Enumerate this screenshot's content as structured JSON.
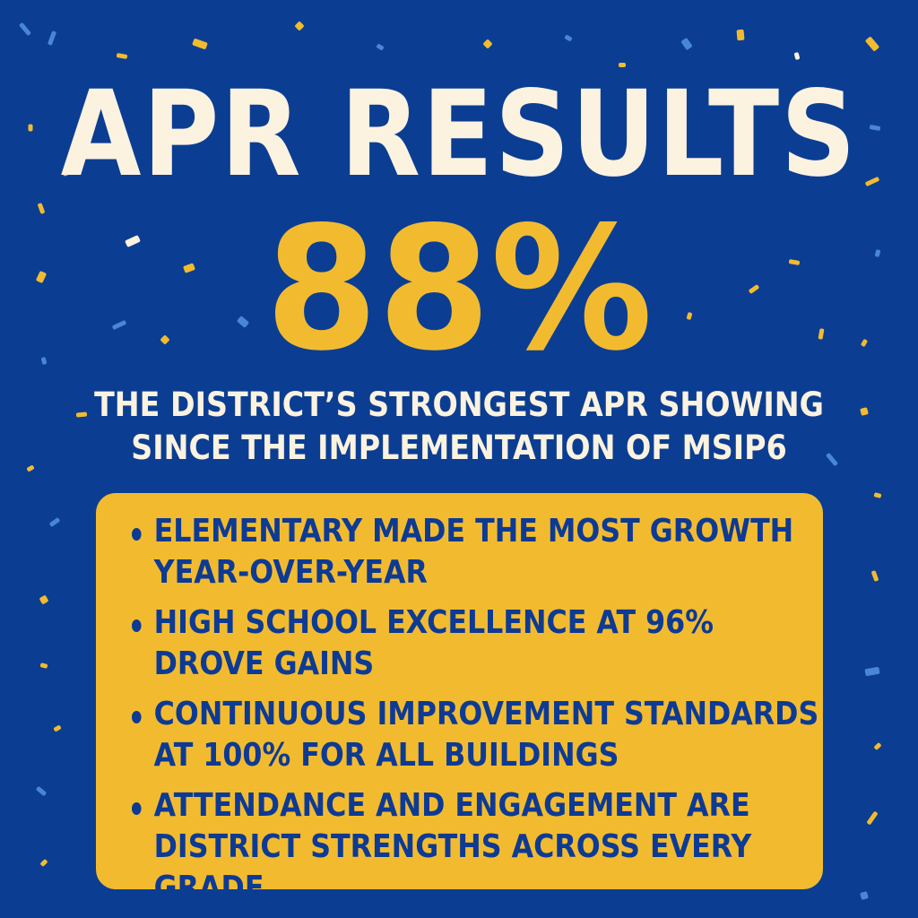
{
  "colors": {
    "background": "#0b3e92",
    "accent_yellow": "#f2bb2f",
    "title_cream": "#fcf2e0",
    "text_blue": "#0d3a94",
    "confetti_light_blue": "#4a86d6"
  },
  "title": "APR RESULTS",
  "headline_value": "88%",
  "subtitle": [
    "THE DISTRICT’S STRONGEST APR SHOWING",
    "SINCE THE IMPLEMENTATION OF MSIP6"
  ],
  "highlights": [
    [
      "ELEMENTARY MADE THE MOST GROWTH",
      "YEAR-OVER-YEAR"
    ],
    [
      "HIGH SCHOOL EXCELLENCE AT 96%",
      "DROVE GAINS"
    ],
    [
      "CONTINUOUS IMPROVEMENT STANDARDS",
      "AT 100% FOR ALL BUILDINGS"
    ],
    [
      "ATTENDANCE AND ENGAGEMENT ARE",
      "DISTRICT STRENGTHS ACROSS EVERY GRADE"
    ]
  ],
  "decoration": "confetti"
}
